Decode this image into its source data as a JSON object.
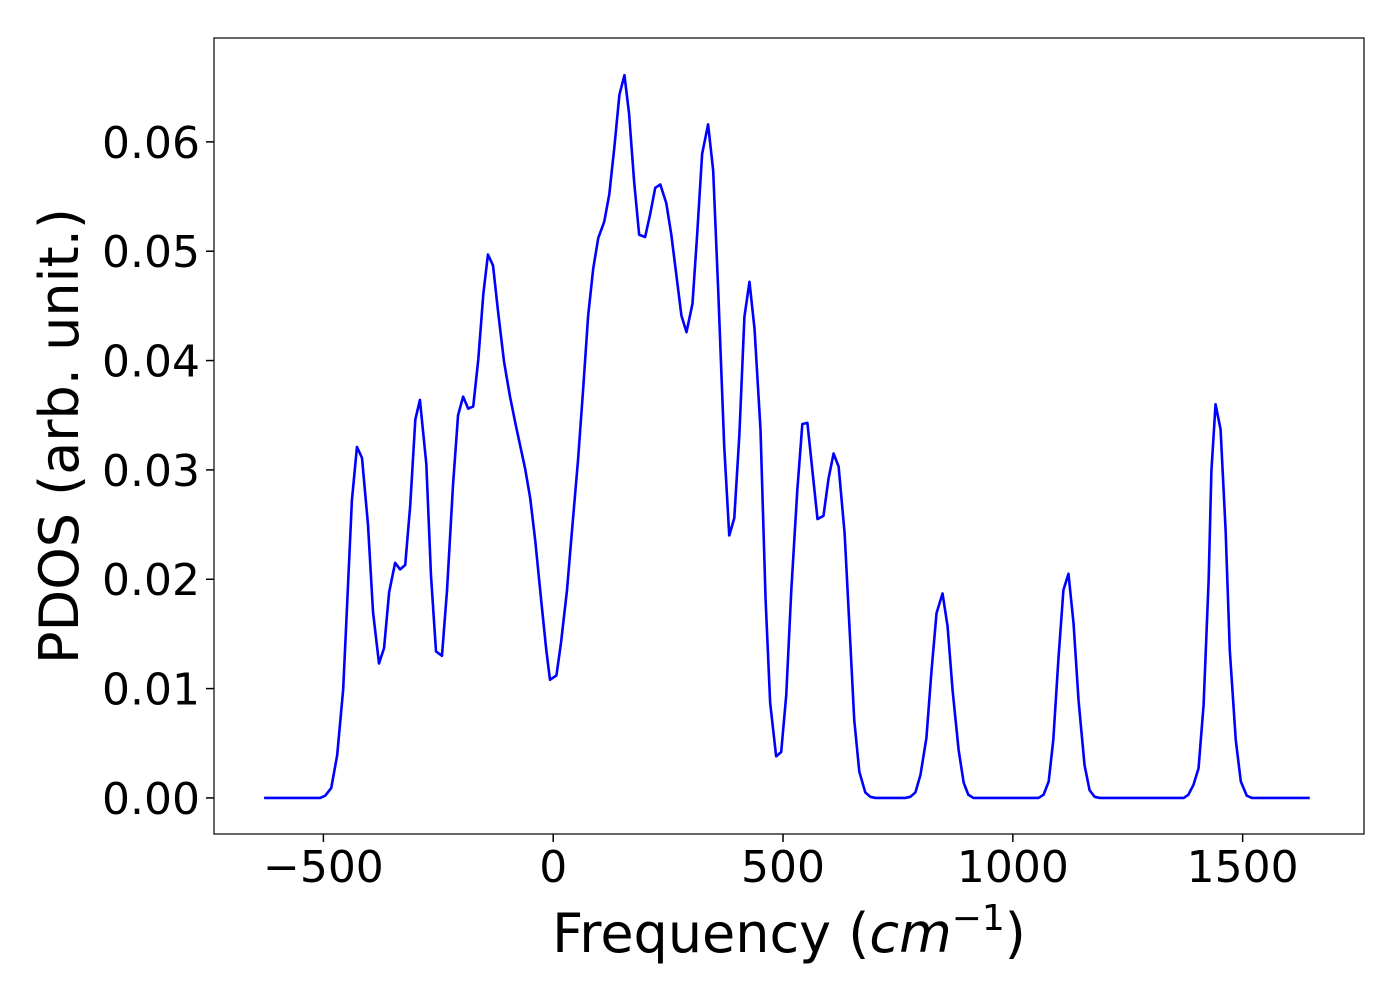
{
  "chart_data": {
    "type": "line",
    "x_label_parts": [
      "Frequency (",
      "cm",
      "−1",
      ")"
    ],
    "y_label": "PDOS (arb. unit.)",
    "color": "#0000ff",
    "grid": false,
    "xlim": [
      -738,
      1764
    ],
    "ylim": [
      -0.0033,
      0.0695
    ],
    "xticks": [
      {
        "value": -500,
        "label": "−500"
      },
      0,
      500,
      1000,
      1500
    ],
    "yticks": [
      {
        "value": 0,
        "label": "0.00"
      },
      0.01,
      0.02,
      0.03,
      0.04,
      0.05,
      0.06
    ],
    "x": [
      -629,
      -507,
      -496,
      -483,
      -470,
      -457,
      -448,
      -438,
      -427,
      -416,
      -403,
      -392,
      -379,
      -368,
      -357,
      -344,
      -333,
      -322,
      -311,
      -300,
      -290,
      -276,
      -266,
      -255,
      -242,
      -231,
      -218,
      -207,
      -196,
      -185,
      -174,
      -163,
      -152,
      -142,
      -131,
      -120,
      -107,
      -94,
      -81,
      -61,
      -50,
      -39,
      -26,
      -15,
      -7,
      7,
      17,
      30,
      41,
      54,
      65,
      76,
      87,
      98,
      111,
      122,
      133,
      144,
      155,
      165,
      176,
      187,
      200,
      211,
      222,
      233,
      246,
      257,
      268,
      279,
      290,
      303,
      313,
      324,
      337,
      348,
      359,
      372,
      383,
      394,
      405,
      416,
      427,
      438,
      451,
      462,
      472,
      485,
      496,
      507,
      518,
      531,
      542,
      553,
      564,
      575,
      588,
      599,
      610,
      621,
      634,
      645,
      655,
      666,
      679,
      690,
      701,
      766,
      777,
      788,
      799,
      812,
      823,
      834,
      847,
      858,
      869,
      882,
      893,
      903,
      914,
      1056,
      1067,
      1078,
      1088,
      1099,
      1110,
      1121,
      1132,
      1143,
      1156,
      1167,
      1178,
      1189,
      1372,
      1382,
      1393,
      1404,
      1415,
      1426,
      1432,
      1441,
      1452,
      1463,
      1472,
      1485,
      1496,
      1509,
      1520,
      1646
    ],
    "values": [
      0,
      0,
      0.0002,
      0.0009,
      0.0039,
      0.0099,
      0.018,
      0.0272,
      0.0321,
      0.0311,
      0.025,
      0.017,
      0.0123,
      0.0137,
      0.0188,
      0.0215,
      0.0209,
      0.0213,
      0.0268,
      0.0346,
      0.0364,
      0.0305,
      0.0204,
      0.0134,
      0.013,
      0.019,
      0.0286,
      0.035,
      0.0367,
      0.0356,
      0.0358,
      0.0401,
      0.0461,
      0.0497,
      0.0487,
      0.0445,
      0.0399,
      0.0367,
      0.034,
      0.0301,
      0.0274,
      0.0235,
      0.018,
      0.0135,
      0.0108,
      0.0112,
      0.0142,
      0.019,
      0.0245,
      0.0309,
      0.0373,
      0.0441,
      0.0484,
      0.0512,
      0.0527,
      0.0552,
      0.0595,
      0.0643,
      0.0661,
      0.0626,
      0.0564,
      0.0515,
      0.0513,
      0.0534,
      0.0558,
      0.0561,
      0.0544,
      0.0515,
      0.0478,
      0.0441,
      0.0426,
      0.0452,
      0.0514,
      0.0589,
      0.0616,
      0.0574,
      0.0464,
      0.0322,
      0.024,
      0.0256,
      0.0332,
      0.044,
      0.0472,
      0.0429,
      0.0337,
      0.0182,
      0.0087,
      0.0038,
      0.0042,
      0.0094,
      0.019,
      0.0281,
      0.0342,
      0.0343,
      0.0299,
      0.0255,
      0.0258,
      0.0292,
      0.0315,
      0.0303,
      0.0242,
      0.0153,
      0.0071,
      0.0024,
      0.0005,
      0.0001,
      0,
      0,
      0.0001,
      0.0005,
      0.0021,
      0.0055,
      0.0116,
      0.0169,
      0.0187,
      0.0157,
      0.0098,
      0.0044,
      0.0014,
      0.0003,
      0,
      0,
      0.0003,
      0.0015,
      0.0053,
      0.0126,
      0.019,
      0.0205,
      0.016,
      0.0089,
      0.003,
      0.0007,
      0.0001,
      0,
      0,
      0.0003,
      0.0012,
      0.0027,
      0.0085,
      0.0199,
      0.0299,
      0.036,
      0.0337,
      0.0244,
      0.0135,
      0.0053,
      0.0015,
      0.0002,
      0,
      0
    ]
  }
}
